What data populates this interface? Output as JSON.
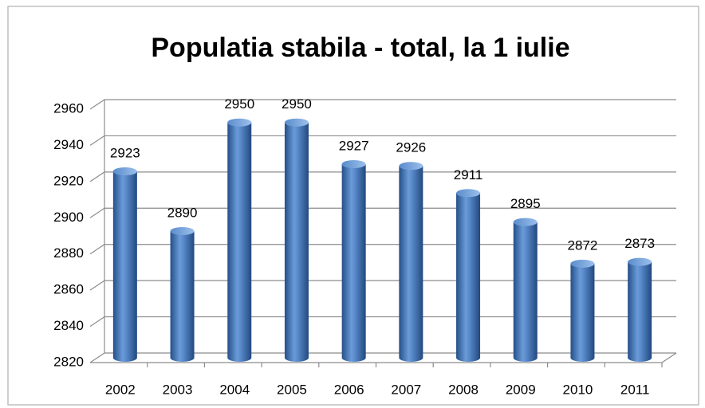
{
  "chart_data": {
    "type": "bar",
    "title": "Populatia stabila - total, la 1 iulie",
    "categories": [
      "2002",
      "2003",
      "2004",
      "2005",
      "2006",
      "2007",
      "2008",
      "2009",
      "2010",
      "2011"
    ],
    "values": [
      2923,
      2890,
      2950,
      2950,
      2927,
      2926,
      2911,
      2895,
      2872,
      2873
    ],
    "color": "#4a7ebf",
    "ylim": [
      2820,
      2960
    ],
    "yticks": [
      2820,
      2840,
      2860,
      2880,
      2900,
      2920,
      2940,
      2960
    ],
    "grid": true
  }
}
